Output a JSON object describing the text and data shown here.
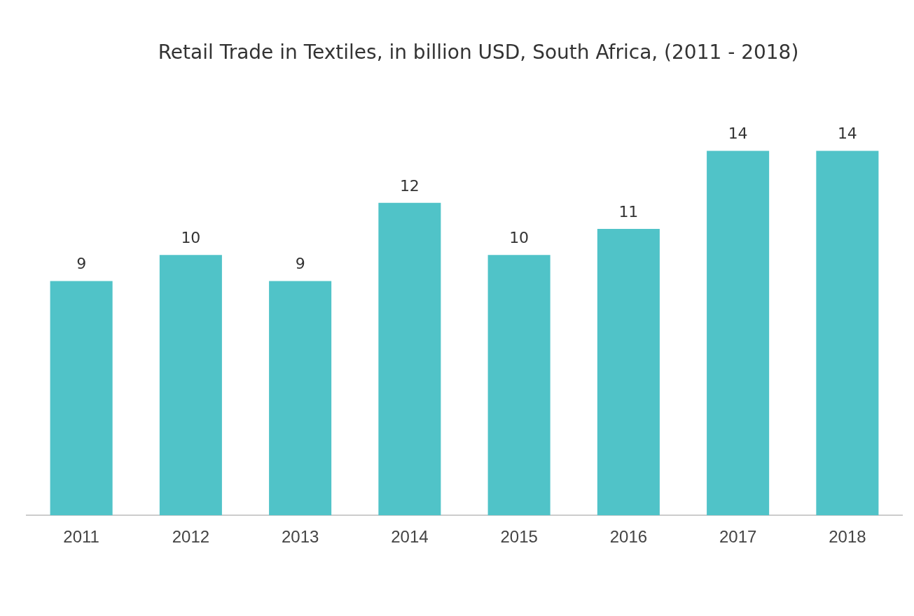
{
  "chart_data": {
    "type": "bar",
    "title": "Retail Trade in Textiles, in billion USD, South Africa, (2011 -  2018)",
    "categories": [
      "2011",
      "2012",
      "2013",
      "2014",
      "2015",
      "2016",
      "2017",
      "2018"
    ],
    "values": [
      9,
      10,
      9,
      12,
      10,
      11,
      14,
      14
    ],
    "color": "#50c3c8",
    "data_labels": true,
    "grid": false,
    "legend": false
  }
}
